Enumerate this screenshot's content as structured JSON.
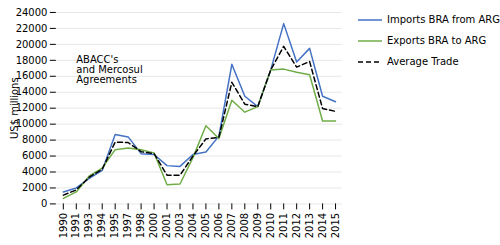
{
  "chart_data": {
    "type": "line",
    "categories": [
      "1990",
      "1991",
      "1993",
      "1994",
      "1995",
      "1997",
      "1998",
      "2000",
      "2001",
      "2003",
      "2004",
      "2005",
      "2006",
      "2007",
      "2008",
      "2009",
      "2010",
      "2011",
      "2012",
      "2013",
      "2014",
      "2015"
    ],
    "series": [
      {
        "name": "Imports BRA from ARG",
        "color": "#4472c4",
        "line_style": "solid",
        "values": [
          1500,
          2000,
          3200,
          4200,
          8700,
          8400,
          6300,
          6200,
          4800,
          4700,
          6200,
          6500,
          8500,
          17500,
          13500,
          12200,
          16800,
          22600,
          17800,
          19500,
          13500,
          12800
        ]
      },
      {
        "name": "Exports BRA to ARG",
        "color": "#70ad47",
        "line_style": "solid",
        "values": [
          700,
          1500,
          3500,
          4500,
          6800,
          7000,
          6800,
          6400,
          2400,
          2500,
          5800,
          9800,
          8200,
          13000,
          11500,
          12200,
          16800,
          16900,
          16500,
          16200,
          10400,
          10400
        ]
      },
      {
        "name": "Average Trade",
        "color": "#000000",
        "line_style": "dashed",
        "values": [
          1100,
          1750,
          3350,
          4350,
          7750,
          7700,
          6550,
          6300,
          3600,
          3600,
          6000,
          8150,
          8350,
          15250,
          12500,
          12200,
          16800,
          19750,
          17150,
          17850,
          11950,
          11600
        ]
      }
    ],
    "ylabel": "US$ millions",
    "ylim": [
      0,
      24000
    ],
    "yticks": [
      0,
      2000,
      4000,
      6000,
      8000,
      10000,
      12000,
      14000,
      16000,
      18000,
      20000,
      22000,
      24000
    ],
    "grid": true,
    "legend": "right",
    "annotations": [
      {
        "text": "ABACC's\nand Mercosul\nAgreements",
        "x": "1991",
        "y": 18500
      }
    ]
  }
}
